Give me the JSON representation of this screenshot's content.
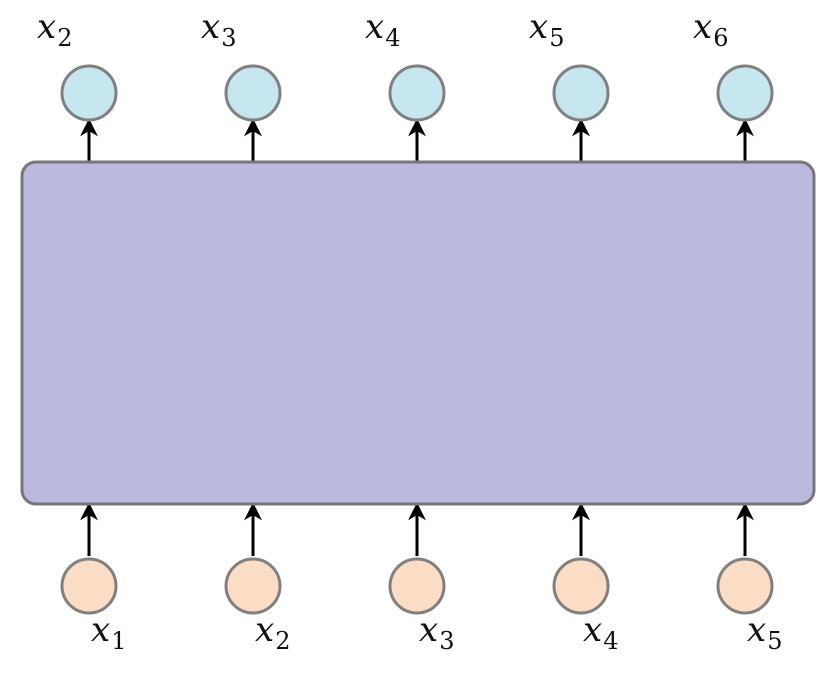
{
  "diagram": {
    "outputs": [
      {
        "var": "x",
        "sub": "2"
      },
      {
        "var": "x",
        "sub": "3"
      },
      {
        "var": "x",
        "sub": "4"
      },
      {
        "var": "x",
        "sub": "5"
      },
      {
        "var": "x",
        "sub": "6"
      }
    ],
    "inputs": [
      {
        "var": "x",
        "sub": "1"
      },
      {
        "var": "x",
        "sub": "2"
      },
      {
        "var": "x",
        "sub": "3"
      },
      {
        "var": "x",
        "sub": "4"
      },
      {
        "var": "x",
        "sub": "5"
      }
    ],
    "colors": {
      "block_fill": "#bbb9dd",
      "block_stroke": "#777777",
      "output_node_fill": "#c6e6f0",
      "input_node_fill": "#fbdcc4",
      "node_stroke": "#808080",
      "arrow": "#000000"
    }
  }
}
